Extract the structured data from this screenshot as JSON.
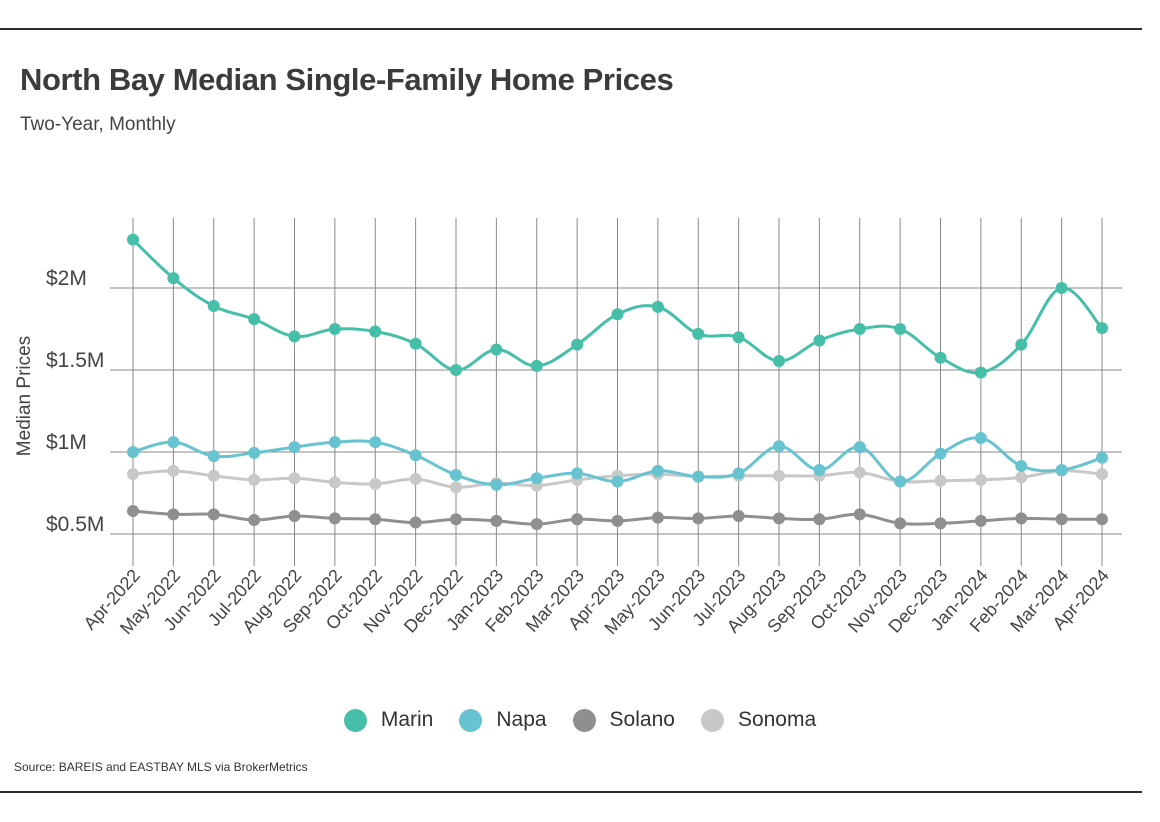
{
  "title": "North Bay Median Single-Family Home Prices",
  "subtitle": "Two-Year, Monthly",
  "source": "Source:  BAREIS and EASTBAY MLS via BrokerMetrics",
  "chart_data": {
    "type": "line",
    "ylabel": "Median Prices",
    "xlabel": "",
    "ylim": [
      400000,
      2400000
    ],
    "yticks": [
      500000,
      1000000,
      1500000,
      2000000
    ],
    "ytick_labels": [
      "$0.5M",
      "$1M",
      "$1.5M",
      "$2M"
    ],
    "grid": true,
    "legend_position": "bottom",
    "categories": [
      "Apr-2022",
      "May-2022",
      "Jun-2022",
      "Jul-2022",
      "Aug-2022",
      "Sep-2022",
      "Oct-2022",
      "Nov-2022",
      "Dec-2022",
      "Jan-2023",
      "Feb-2023",
      "Mar-2023",
      "Apr-2023",
      "May-2023",
      "Jun-2023",
      "Jul-2023",
      "Aug-2023",
      "Sep-2023",
      "Oct-2023",
      "Nov-2023",
      "Dec-2023",
      "Jan-2024",
      "Feb-2024",
      "Mar-2024",
      "Apr-2024"
    ],
    "series": [
      {
        "name": "Marin",
        "color": "#46bfa8",
        "values": [
          2295000,
          2060000,
          1890000,
          1810000,
          1705000,
          1750000,
          1735000,
          1660000,
          1500000,
          1625000,
          1525000,
          1655000,
          1840000,
          1885000,
          1720000,
          1700000,
          1555000,
          1680000,
          1750000,
          1750000,
          1575000,
          1485000,
          1655000,
          2000000,
          1755000
        ]
      },
      {
        "name": "Napa",
        "color": "#66c3cf",
        "values": [
          1000000,
          1060000,
          975000,
          995000,
          1030000,
          1060000,
          1060000,
          980000,
          860000,
          800000,
          840000,
          870000,
          820000,
          885000,
          850000,
          870000,
          1035000,
          890000,
          1030000,
          820000,
          990000,
          1085000,
          915000,
          890000,
          965000
        ]
      },
      {
        "name": "Solano",
        "color": "#8f8f8f",
        "values": [
          640000,
          620000,
          620000,
          585000,
          610000,
          595000,
          590000,
          570000,
          590000,
          580000,
          560000,
          590000,
          580000,
          600000,
          595000,
          610000,
          595000,
          590000,
          620000,
          565000,
          565000,
          580000,
          595000,
          590000,
          590000
        ]
      },
      {
        "name": "Sonoma",
        "color": "#c8c8c8",
        "values": [
          865000,
          885000,
          855000,
          830000,
          840000,
          815000,
          805000,
          835000,
          785000,
          810000,
          795000,
          830000,
          855000,
          865000,
          850000,
          855000,
          855000,
          855000,
          875000,
          820000,
          825000,
          830000,
          845000,
          885000,
          865000
        ]
      }
    ]
  }
}
